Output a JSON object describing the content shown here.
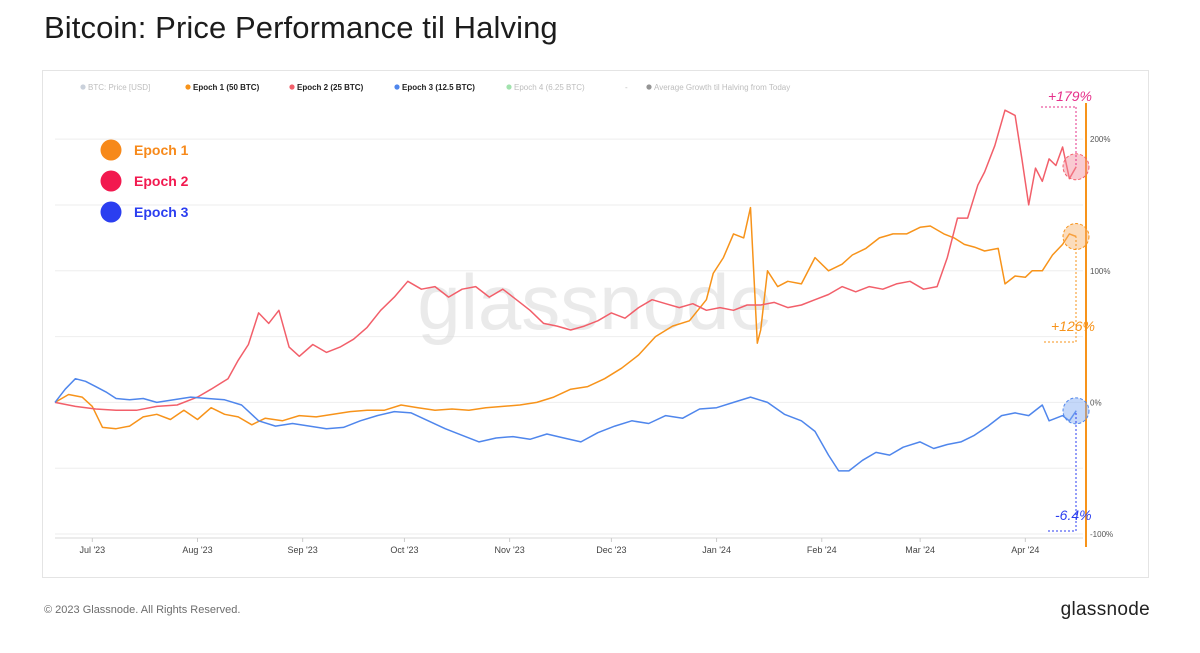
{
  "page": {
    "title": "Bitcoin: Price Performance til Halving",
    "copyright": "© 2023 Glassnode. All Rights Reserved.",
    "brand": "glassnode",
    "watermark": "glassnode"
  },
  "legend": [
    {
      "label": "BTC: Price [USD]",
      "color": "#8a9ab0",
      "active": false
    },
    {
      "label": "Epoch 1 (50 BTC)",
      "color": "#f7931a",
      "active": true
    },
    {
      "label": "Epoch 2 (25 BTC)",
      "color": "#f25f6a",
      "active": true
    },
    {
      "label": "Epoch 3 (12.5 BTC)",
      "color": "#4f86ec",
      "active": true
    },
    {
      "label": "Epoch 4 (6.25 BTC)",
      "color": "#2fbf4a",
      "active": false
    },
    {
      "label": "-",
      "color": "#bbbbbb",
      "active": false
    },
    {
      "label": "Average Growth til Halving from Today",
      "color": "#111111",
      "active": false
    }
  ],
  "epoch_badges": [
    {
      "label": "Epoch 1",
      "color": "#f7891a"
    },
    {
      "label": "Epoch 2",
      "color": "#f2194f"
    },
    {
      "label": "Epoch 3",
      "color": "#2b3ef0"
    }
  ],
  "annotations": [
    {
      "text": "+179%",
      "color": "#e6308a",
      "series": "Epoch 2"
    },
    {
      "text": "+126%",
      "color": "#f7931a",
      "series": "Epoch 1"
    },
    {
      "text": "-6.4%",
      "color": "#2b3ef0",
      "series": "Epoch 3"
    }
  ],
  "chart_data": {
    "type": "line",
    "title": "Bitcoin: Price Performance til Halving",
    "x_ticks": [
      "Jul '23",
      "Aug '23",
      "Sep '23",
      "Oct '23",
      "Nov '23",
      "Dec '23",
      "Jan '24",
      "Feb '24",
      "Mar '24",
      "Apr '24"
    ],
    "y_ticks": [
      {
        "value": 200,
        "label": "200%"
      },
      {
        "value": 100,
        "label": "100%"
      },
      {
        "value": 0,
        "label": "0%"
      },
      {
        "value": -100,
        "label": "-100%"
      }
    ],
    "ylim": [
      -103,
      232
    ],
    "x_start": "2023-06-20",
    "x_end": "2024-04-18",
    "y_axis_side": "right",
    "grid": "horizontal",
    "series": [
      {
        "name": "Epoch 1 (50 BTC)",
        "color": "#f7931a",
        "points": [
          [
            "2023-06-20",
            0
          ],
          [
            "2023-06-24",
            6
          ],
          [
            "2023-06-28",
            4
          ],
          [
            "2023-07-01",
            -3
          ],
          [
            "2023-07-04",
            -19
          ],
          [
            "2023-07-08",
            -20
          ],
          [
            "2023-07-12",
            -18
          ],
          [
            "2023-07-16",
            -11
          ],
          [
            "2023-07-20",
            -9
          ],
          [
            "2023-07-24",
            -13
          ],
          [
            "2023-07-28",
            -6
          ],
          [
            "2023-08-01",
            -13
          ],
          [
            "2023-08-05",
            -4
          ],
          [
            "2023-08-09",
            -9
          ],
          [
            "2023-08-13",
            -11
          ],
          [
            "2023-08-17",
            -17
          ],
          [
            "2023-08-21",
            -12
          ],
          [
            "2023-08-26",
            -14
          ],
          [
            "2023-08-31",
            -10
          ],
          [
            "2023-09-05",
            -11
          ],
          [
            "2023-09-10",
            -9
          ],
          [
            "2023-09-15",
            -7
          ],
          [
            "2023-09-20",
            -6
          ],
          [
            "2023-09-25",
            -6
          ],
          [
            "2023-09-30",
            -2
          ],
          [
            "2023-10-05",
            -4
          ],
          [
            "2023-10-10",
            -6
          ],
          [
            "2023-10-15",
            -5
          ],
          [
            "2023-10-20",
            -6
          ],
          [
            "2023-10-25",
            -4
          ],
          [
            "2023-10-30",
            -3
          ],
          [
            "2023-11-04",
            -2
          ],
          [
            "2023-11-09",
            0
          ],
          [
            "2023-11-14",
            4
          ],
          [
            "2023-11-19",
            10
          ],
          [
            "2023-11-24",
            12
          ],
          [
            "2023-11-29",
            18
          ],
          [
            "2023-12-04",
            26
          ],
          [
            "2023-12-09",
            36
          ],
          [
            "2023-12-14",
            50
          ],
          [
            "2023-12-19",
            58
          ],
          [
            "2023-12-24",
            62
          ],
          [
            "2023-12-29",
            78
          ],
          [
            "2023-12-31",
            98
          ],
          [
            "2024-01-03",
            110
          ],
          [
            "2024-01-06",
            128
          ],
          [
            "2024-01-09",
            125
          ],
          [
            "2024-01-11",
            148
          ],
          [
            "2024-01-13",
            45
          ],
          [
            "2024-01-14",
            55
          ],
          [
            "2024-01-16",
            100
          ],
          [
            "2024-01-19",
            88
          ],
          [
            "2024-01-22",
            92
          ],
          [
            "2024-01-26",
            90
          ],
          [
            "2024-01-30",
            110
          ],
          [
            "2024-02-03",
            100
          ],
          [
            "2024-02-07",
            105
          ],
          [
            "2024-02-10",
            112
          ],
          [
            "2024-02-14",
            117
          ],
          [
            "2024-02-18",
            125
          ],
          [
            "2024-02-22",
            128
          ],
          [
            "2024-02-26",
            128
          ],
          [
            "2024-03-01",
            133
          ],
          [
            "2024-03-04",
            134
          ],
          [
            "2024-03-08",
            128
          ],
          [
            "2024-03-11",
            125
          ],
          [
            "2024-03-14",
            120
          ],
          [
            "2024-03-17",
            118
          ],
          [
            "2024-03-20",
            115
          ],
          [
            "2024-03-24",
            117
          ],
          [
            "2024-03-26",
            90
          ],
          [
            "2024-03-29",
            96
          ],
          [
            "2024-04-01",
            95
          ],
          [
            "2024-04-03",
            100
          ],
          [
            "2024-04-06",
            100
          ],
          [
            "2024-04-09",
            112
          ],
          [
            "2024-04-12",
            120
          ],
          [
            "2024-04-14",
            128
          ],
          [
            "2024-04-16",
            126
          ]
        ]
      },
      {
        "name": "Epoch 2 (25 BTC)",
        "color": "#f25f6a",
        "points": [
          [
            "2023-06-20",
            0
          ],
          [
            "2023-06-26",
            -3
          ],
          [
            "2023-07-02",
            -5
          ],
          [
            "2023-07-08",
            -6
          ],
          [
            "2023-07-14",
            -6
          ],
          [
            "2023-07-20",
            -3
          ],
          [
            "2023-07-26",
            -2
          ],
          [
            "2023-08-01",
            4
          ],
          [
            "2023-08-05",
            10
          ],
          [
            "2023-08-10",
            18
          ],
          [
            "2023-08-13",
            32
          ],
          [
            "2023-08-16",
            44
          ],
          [
            "2023-08-19",
            68
          ],
          [
            "2023-08-22",
            60
          ],
          [
            "2023-08-25",
            70
          ],
          [
            "2023-08-28",
            42
          ],
          [
            "2023-08-31",
            35
          ],
          [
            "2023-09-04",
            44
          ],
          [
            "2023-09-08",
            38
          ],
          [
            "2023-09-12",
            42
          ],
          [
            "2023-09-16",
            48
          ],
          [
            "2023-09-20",
            57
          ],
          [
            "2023-09-24",
            70
          ],
          [
            "2023-09-28",
            80
          ],
          [
            "2023-10-02",
            92
          ],
          [
            "2023-10-06",
            86
          ],
          [
            "2023-10-10",
            88
          ],
          [
            "2023-10-14",
            80
          ],
          [
            "2023-10-18",
            86
          ],
          [
            "2023-10-22",
            88
          ],
          [
            "2023-10-26",
            80
          ],
          [
            "2023-10-30",
            86
          ],
          [
            "2023-11-03",
            78
          ],
          [
            "2023-11-07",
            70
          ],
          [
            "2023-11-11",
            60
          ],
          [
            "2023-11-15",
            58
          ],
          [
            "2023-11-19",
            55
          ],
          [
            "2023-11-23",
            58
          ],
          [
            "2023-11-27",
            62
          ],
          [
            "2023-12-01",
            68
          ],
          [
            "2023-12-05",
            64
          ],
          [
            "2023-12-09",
            72
          ],
          [
            "2023-12-13",
            78
          ],
          [
            "2023-12-17",
            75
          ],
          [
            "2023-12-21",
            72
          ],
          [
            "2023-12-25",
            75
          ],
          [
            "2023-12-29",
            70
          ],
          [
            "2024-01-02",
            72
          ],
          [
            "2024-01-06",
            70
          ],
          [
            "2024-01-10",
            74
          ],
          [
            "2024-01-14",
            74
          ],
          [
            "2024-01-18",
            76
          ],
          [
            "2024-01-22",
            72
          ],
          [
            "2024-01-26",
            74
          ],
          [
            "2024-01-30",
            78
          ],
          [
            "2024-02-03",
            82
          ],
          [
            "2024-02-07",
            88
          ],
          [
            "2024-02-11",
            84
          ],
          [
            "2024-02-15",
            88
          ],
          [
            "2024-02-19",
            86
          ],
          [
            "2024-02-23",
            90
          ],
          [
            "2024-02-27",
            92
          ],
          [
            "2024-03-02",
            86
          ],
          [
            "2024-03-06",
            88
          ],
          [
            "2024-03-09",
            110
          ],
          [
            "2024-03-12",
            140
          ],
          [
            "2024-03-15",
            140
          ],
          [
            "2024-03-18",
            165
          ],
          [
            "2024-03-20",
            175
          ],
          [
            "2024-03-23",
            195
          ],
          [
            "2024-03-26",
            222
          ],
          [
            "2024-03-29",
            218
          ],
          [
            "2024-03-31",
            185
          ],
          [
            "2024-04-02",
            150
          ],
          [
            "2024-04-04",
            178
          ],
          [
            "2024-04-06",
            168
          ],
          [
            "2024-04-08",
            185
          ],
          [
            "2024-04-10",
            180
          ],
          [
            "2024-04-12",
            194
          ],
          [
            "2024-04-14",
            170
          ],
          [
            "2024-04-16",
            179
          ]
        ]
      },
      {
        "name": "Epoch 3 (12.5 BTC)",
        "color": "#4f86ec",
        "points": [
          [
            "2023-06-20",
            0
          ],
          [
            "2023-06-23",
            10
          ],
          [
            "2023-06-26",
            18
          ],
          [
            "2023-06-29",
            16
          ],
          [
            "2023-07-02",
            12
          ],
          [
            "2023-07-05",
            8
          ],
          [
            "2023-07-08",
            3
          ],
          [
            "2023-07-12",
            2
          ],
          [
            "2023-07-16",
            3
          ],
          [
            "2023-07-20",
            0
          ],
          [
            "2023-07-25",
            2
          ],
          [
            "2023-07-30",
            4
          ],
          [
            "2023-08-04",
            3
          ],
          [
            "2023-08-09",
            2
          ],
          [
            "2023-08-14",
            -2
          ],
          [
            "2023-08-19",
            -14
          ],
          [
            "2023-08-24",
            -18
          ],
          [
            "2023-08-29",
            -16
          ],
          [
            "2023-09-03",
            -18
          ],
          [
            "2023-09-08",
            -20
          ],
          [
            "2023-09-13",
            -19
          ],
          [
            "2023-09-18",
            -14
          ],
          [
            "2023-09-23",
            -10
          ],
          [
            "2023-09-28",
            -7
          ],
          [
            "2023-10-03",
            -8
          ],
          [
            "2023-10-08",
            -14
          ],
          [
            "2023-10-13",
            -20
          ],
          [
            "2023-10-18",
            -25
          ],
          [
            "2023-10-23",
            -30
          ],
          [
            "2023-10-28",
            -27
          ],
          [
            "2023-11-02",
            -26
          ],
          [
            "2023-11-07",
            -28
          ],
          [
            "2023-11-12",
            -24
          ],
          [
            "2023-11-17",
            -27
          ],
          [
            "2023-11-22",
            -30
          ],
          [
            "2023-11-27",
            -23
          ],
          [
            "2023-12-02",
            -18
          ],
          [
            "2023-12-07",
            -14
          ],
          [
            "2023-12-12",
            -16
          ],
          [
            "2023-12-17",
            -10
          ],
          [
            "2023-12-22",
            -12
          ],
          [
            "2023-12-27",
            -5
          ],
          [
            "2024-01-01",
            -4
          ],
          [
            "2024-01-06",
            0
          ],
          [
            "2024-01-11",
            4
          ],
          [
            "2024-01-16",
            0
          ],
          [
            "2024-01-21",
            -9
          ],
          [
            "2024-01-26",
            -14
          ],
          [
            "2024-01-30",
            -22
          ],
          [
            "2024-02-03",
            -40
          ],
          [
            "2024-02-06",
            -52
          ],
          [
            "2024-02-09",
            -52
          ],
          [
            "2024-02-13",
            -44
          ],
          [
            "2024-02-17",
            -38
          ],
          [
            "2024-02-21",
            -40
          ],
          [
            "2024-02-25",
            -34
          ],
          [
            "2024-03-01",
            -30
          ],
          [
            "2024-03-05",
            -35
          ],
          [
            "2024-03-09",
            -32
          ],
          [
            "2024-03-13",
            -30
          ],
          [
            "2024-03-17",
            -25
          ],
          [
            "2024-03-21",
            -18
          ],
          [
            "2024-03-25",
            -10
          ],
          [
            "2024-03-29",
            -8
          ],
          [
            "2024-04-02",
            -10
          ],
          [
            "2024-04-06",
            -2
          ],
          [
            "2024-04-08",
            -14
          ],
          [
            "2024-04-10",
            -12
          ],
          [
            "2024-04-12",
            -10
          ],
          [
            "2024-04-14",
            -14
          ],
          [
            "2024-04-16",
            -6.4
          ]
        ]
      }
    ]
  }
}
